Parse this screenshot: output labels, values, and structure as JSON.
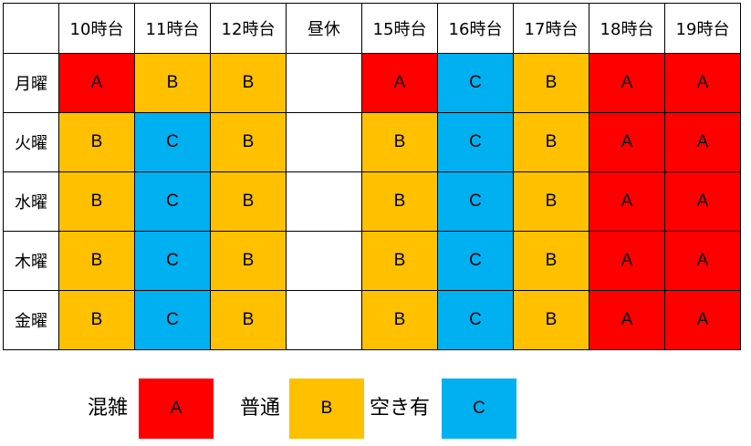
{
  "colors": {
    "A": "#ff0000",
    "B": "#ffc000",
    "C": "#00b0f0",
    "empty": "#ffffff"
  },
  "columns": [
    "10時台",
    "11時台",
    "12時台",
    "昼休",
    "15時台",
    "16時台",
    "17時台",
    "18時台",
    "19時台"
  ],
  "rows": [
    {
      "day": "月曜",
      "levels": [
        "A",
        "B",
        "B",
        "",
        "A",
        "C",
        "B",
        "A",
        "A"
      ]
    },
    {
      "day": "火曜",
      "levels": [
        "B",
        "C",
        "B",
        "",
        "B",
        "C",
        "B",
        "A",
        "A"
      ]
    },
    {
      "day": "水曜",
      "levels": [
        "B",
        "C",
        "B",
        "",
        "B",
        "C",
        "B",
        "A",
        "A"
      ]
    },
    {
      "day": "木曜",
      "levels": [
        "B",
        "C",
        "B",
        "",
        "B",
        "C",
        "B",
        "A",
        "A"
      ]
    },
    {
      "day": "金曜",
      "levels": [
        "B",
        "C",
        "B",
        "",
        "B",
        "C",
        "B",
        "A",
        "A"
      ]
    }
  ],
  "legend": [
    {
      "label": "混雑",
      "level": "A"
    },
    {
      "label": "普通",
      "level": "B"
    },
    {
      "label": "空き有",
      "level": "C"
    }
  ]
}
